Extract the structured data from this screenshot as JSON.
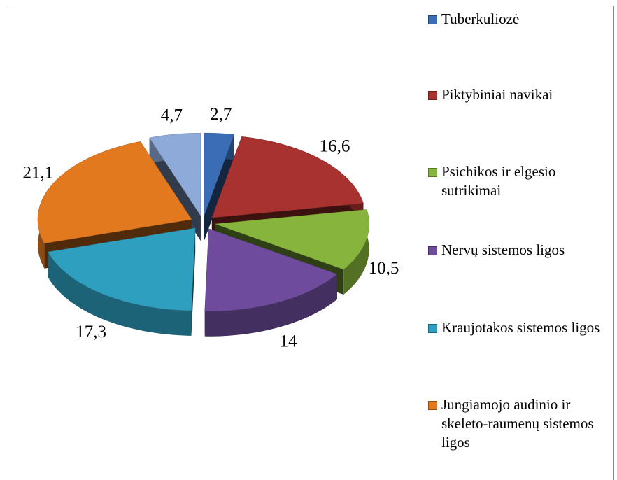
{
  "chart_data": {
    "type": "pie",
    "categories": [
      "Tuberkuliozė",
      "Piktybiniai navikai",
      "Psichikos ir elgesio sutrikimai",
      "Nervų sistemos ligos",
      "Kraujotakos sistemos ligos",
      "Jungiamojo audinio ir skeleto-raumenų sistemos ligos",
      null
    ],
    "values": [
      2.7,
      16.6,
      10.5,
      14,
      17.3,
      21.1,
      4.7
    ],
    "value_labels": [
      "2,7",
      "16,6",
      "10,5",
      "14",
      "17,3",
      "21,1",
      "4,7"
    ],
    "colors": [
      "#3a6db5",
      "#a8322f",
      "#86b43c",
      "#6e4b9c",
      "#2f9fc0",
      "#e2791f",
      "#8eaad9"
    ],
    "legend": "right"
  }
}
